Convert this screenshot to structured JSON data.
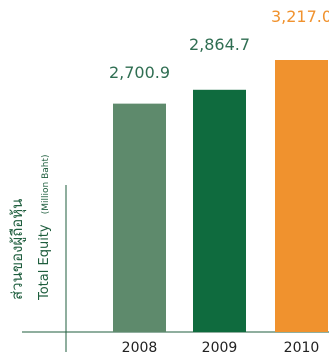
{
  "chart_data": {
    "type": "bar",
    "categories": [
      "2008",
      "2009",
      "2010"
    ],
    "values": [
      2700.9,
      2864.7,
      3217.0
    ],
    "value_labels": [
      "2,700.9",
      "2,864.7",
      "3,217.0"
    ],
    "ylabel_thai": "ส่วนของผู้ถือหุ้น",
    "ylabel": "Total Equity",
    "yunit": "(Million Baht)",
    "bar_colors": [
      "#5e8a6c",
      "#0f6b3e",
      "#f0922e"
    ],
    "label_colors": [
      "#2f6e52",
      "#2f6e52",
      "#f0922e"
    ],
    "axis_color": "#1f5e3e",
    "ylim": [
      0,
      3217.0
    ]
  }
}
